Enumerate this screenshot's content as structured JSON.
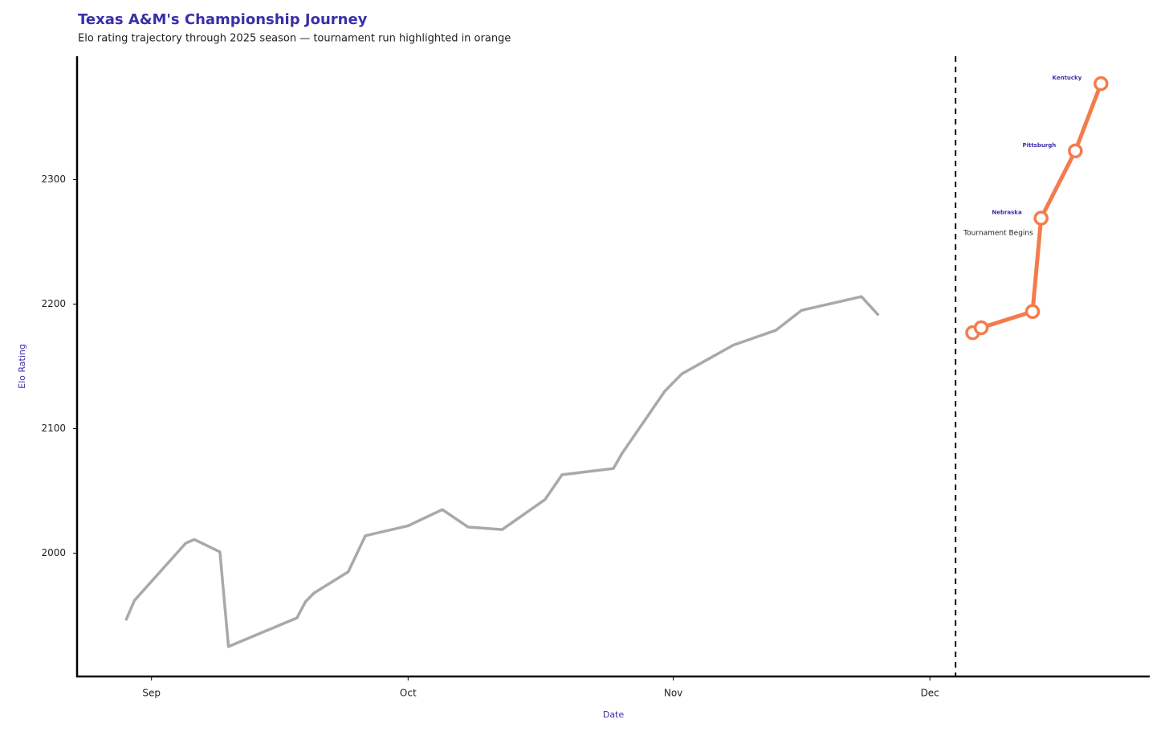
{
  "chart_data": {
    "type": "line",
    "title": "Texas A&M's Championship Journey",
    "subtitle": "Elo rating trajectory through 2025 season — tournament run highlighted in orange",
    "x_label": "Date",
    "y_label": "Elo Rating",
    "xlim": [
      -8.7,
      116.7
    ],
    "xticks": [
      {
        "value": 0,
        "label": "Sep"
      },
      {
        "value": 30,
        "label": "Oct"
      },
      {
        "value": 61,
        "label": "Nov"
      },
      {
        "value": 91,
        "label": "Dec"
      }
    ],
    "ylim": [
      1901,
      2399
    ],
    "yticks": [
      2000,
      2100,
      2200,
      2300
    ],
    "grid": false,
    "series": [
      {
        "color": "#a9a9a9",
        "markers": false,
        "x": [
          -3,
          -2,
          4,
          5,
          8,
          9,
          17,
          18,
          19,
          23,
          25,
          30,
          34,
          37,
          41,
          46,
          48,
          54,
          55,
          60,
          62,
          68,
          73,
          76,
          83,
          85
        ],
        "values": [
          1946,
          1962,
          2008,
          2011,
          2001,
          1925,
          1948,
          1961,
          1968,
          1985,
          2014,
          2022,
          2035,
          2021,
          2019,
          2043,
          2063,
          2068,
          2080,
          2130,
          2144,
          2167,
          2179,
          2195,
          2206,
          2191
        ]
      },
      {
        "color": "#f47c4c",
        "markers": true,
        "x": [
          96,
          97,
          103,
          104,
          108,
          111
        ],
        "values": [
          2177,
          2181,
          2194,
          2269,
          2323,
          2377
        ],
        "point_labels": [
          null,
          null,
          null,
          "Nebraska",
          "Pittsburgh",
          "Kentucky"
        ]
      }
    ],
    "vline": {
      "x": 94,
      "label": "Tournament Begins"
    }
  }
}
